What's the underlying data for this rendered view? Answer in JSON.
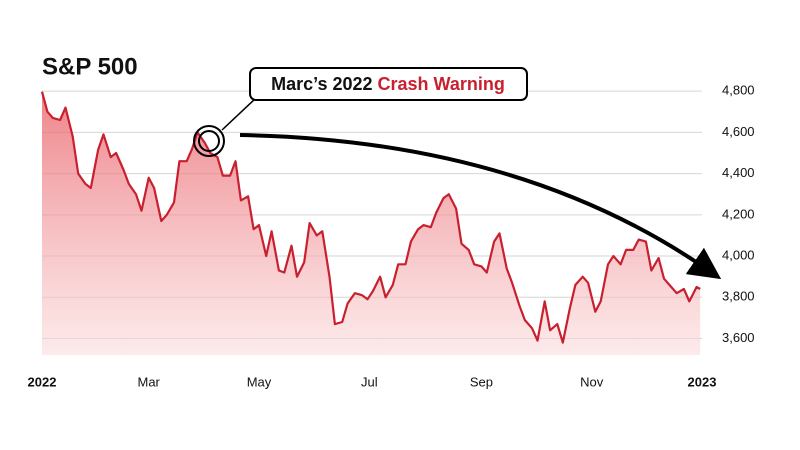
{
  "chart_data": {
    "type": "area",
    "title": "S&P 500",
    "annotation": {
      "prefix": "Marc’s 2022 ",
      "highlight": "Crash Warning"
    },
    "color": "#c8202f",
    "highlight_color": "#c8202f",
    "grid": true,
    "y_axis_side": "right",
    "xlim": [
      0,
      365
    ],
    "xticks": [
      {
        "value": 0,
        "label": "2022"
      },
      {
        "value": 59,
        "label": "Mar"
      },
      {
        "value": 120,
        "label": "May"
      },
      {
        "value": 181,
        "label": "Jul"
      },
      {
        "value": 243,
        "label": "Sep"
      },
      {
        "value": 304,
        "label": "Nov"
      },
      {
        "value": 365,
        "label": "2023"
      }
    ],
    "ylim": [
      3520,
      4820
    ],
    "yticks": [
      {
        "value": 3600,
        "label": "3,600"
      },
      {
        "value": 3800,
        "label": "3,800"
      },
      {
        "value": 4000,
        "label": "4,000"
      },
      {
        "value": 4200,
        "label": "4,200"
      },
      {
        "value": 4400,
        "label": "4,400"
      },
      {
        "value": 4600,
        "label": "4,600"
      },
      {
        "value": 4800,
        "label": "4,800"
      }
    ],
    "x": [
      0,
      3,
      6,
      10,
      13,
      17,
      20,
      24,
      27,
      31,
      34,
      38,
      41,
      45,
      48,
      52,
      55,
      59,
      62,
      66,
      69,
      73,
      76,
      80,
      83,
      86,
      90,
      93,
      97,
      100,
      104,
      107,
      110,
      114,
      117,
      120,
      124,
      127,
      131,
      134,
      138,
      141,
      145,
      148,
      152,
      155,
      159,
      162,
      166,
      169,
      173,
      177,
      180,
      183,
      187,
      190,
      194,
      197,
      201,
      204,
      208,
      211,
      215,
      218,
      222,
      225,
      229,
      232,
      236,
      239,
      243,
      246,
      250,
      253,
      257,
      260,
      264,
      267,
      271,
      274,
      278,
      281,
      285,
      288,
      292,
      295,
      299,
      302,
      306,
      309,
      313,
      316,
      320,
      323,
      327,
      330,
      334,
      337,
      341,
      344,
      348,
      351,
      355,
      358,
      362,
      364
    ],
    "values": [
      4797,
      4700,
      4670,
      4660,
      4720,
      4580,
      4400,
      4350,
      4330,
      4515,
      4590,
      4480,
      4500,
      4420,
      4350,
      4300,
      4220,
      4380,
      4330,
      4170,
      4200,
      4260,
      4460,
      4460,
      4520,
      4600,
      4550,
      4500,
      4480,
      4390,
      4390,
      4460,
      4270,
      4290,
      4130,
      4150,
      4000,
      4120,
      3930,
      3920,
      4050,
      3900,
      3970,
      4160,
      4100,
      4120,
      3900,
      3670,
      3680,
      3770,
      3820,
      3810,
      3790,
      3830,
      3900,
      3800,
      3860,
      3960,
      3960,
      4070,
      4130,
      4150,
      4140,
      4210,
      4280,
      4300,
      4230,
      4060,
      4030,
      3960,
      3950,
      3920,
      4070,
      4110,
      3940,
      3870,
      3760,
      3690,
      3650,
      3590,
      3780,
      3640,
      3670,
      3580,
      3750,
      3860,
      3900,
      3870,
      3730,
      3780,
      3960,
      4000,
      3960,
      4030,
      4030,
      4080,
      4070,
      3930,
      3990,
      3890,
      3850,
      3820,
      3840,
      3780,
      3850,
      3840
    ]
  }
}
